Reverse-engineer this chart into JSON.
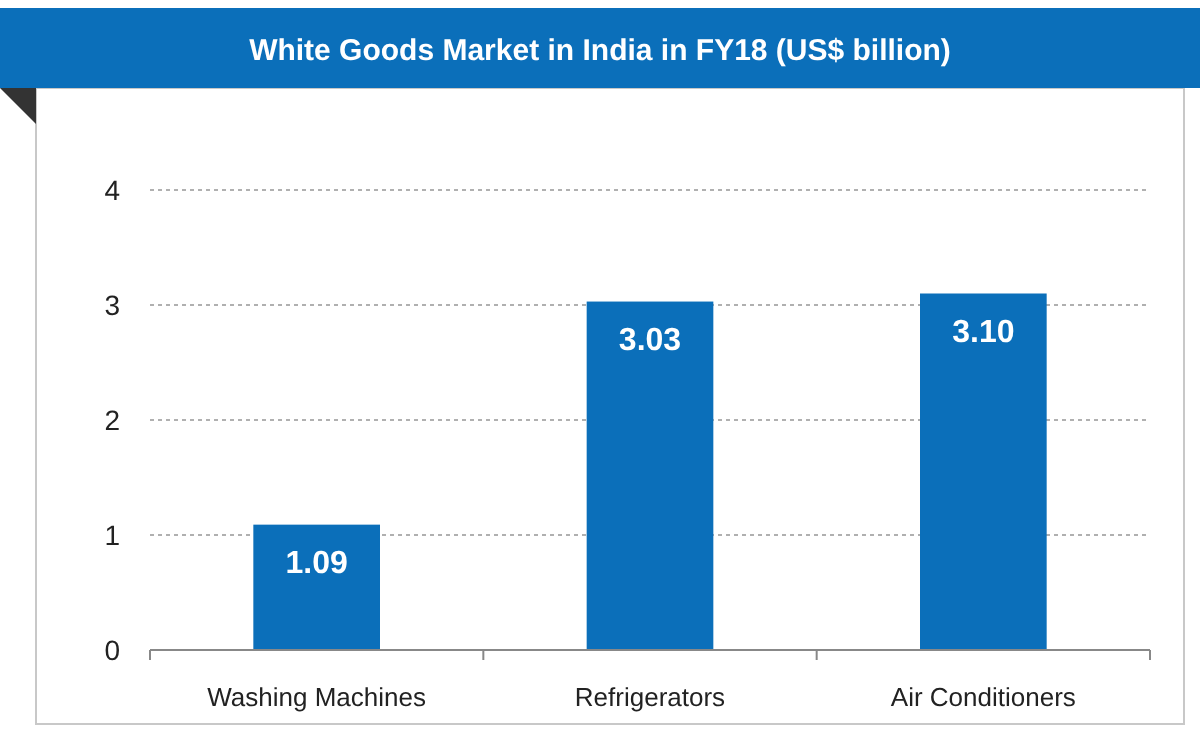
{
  "chart_data": {
    "type": "bar",
    "title": "White Goods Market in India in FY18 (US$ billion)",
    "categories": [
      "Washing Machines",
      "Refrigerators",
      "Air Conditioners"
    ],
    "values": [
      1.09,
      3.03,
      3.1
    ],
    "color": "#0b6fba",
    "ylim": [
      0,
      4
    ],
    "yticks": [
      0,
      1,
      2,
      3,
      4
    ],
    "grid": "y",
    "data_labels": true,
    "value_labels": [
      "1.09",
      "3.03",
      "3.10"
    ]
  }
}
